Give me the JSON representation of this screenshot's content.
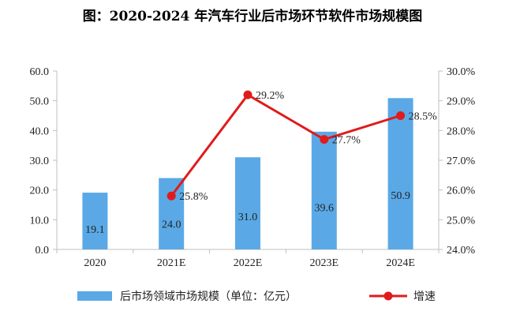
{
  "title": "图：2020-2024 年汽车行业后市场环节软件市场规模图",
  "colors": {
    "bar": "#5aa9e6",
    "line": "#e01b1b",
    "axis": "#bfbfbf",
    "grid": "#d9d9d9"
  },
  "chart_data": {
    "type": "bar",
    "categories": [
      "2020",
      "2021E",
      "2022E",
      "2023E",
      "2024E"
    ],
    "series": [
      {
        "name": "后市场领域市场规模（单位：亿元）",
        "type": "bar",
        "axis": "left",
        "values": [
          19.1,
          24.0,
          31.0,
          39.6,
          50.9
        ],
        "labels": [
          "19.1",
          "24.0",
          "31.0",
          "39.6",
          "50.9"
        ]
      },
      {
        "name": "增速",
        "type": "line",
        "axis": "right",
        "values": [
          null,
          25.8,
          29.2,
          27.7,
          28.5
        ],
        "labels": [
          "",
          "25.8%",
          "29.2%",
          "27.7%",
          "28.5%"
        ]
      }
    ],
    "y_left": {
      "min": 0,
      "max": 60,
      "ticks": [
        "0.0",
        "10.0",
        "20.0",
        "30.0",
        "40.0",
        "50.0",
        "60.0"
      ]
    },
    "y_right": {
      "min": 24,
      "max": 30,
      "ticks": [
        "24.0%",
        "25.0%",
        "26.0%",
        "27.0%",
        "28.0%",
        "29.0%",
        "30.0%"
      ]
    },
    "legend_position": "bottom",
    "grid": false
  }
}
